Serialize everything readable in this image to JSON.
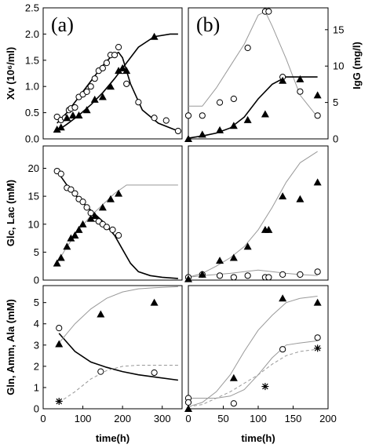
{
  "chart_data": [
    {
      "id": "a-top",
      "type": "scatter",
      "panel_label": "(a)",
      "ylabel": "Xv (10⁶/ml)",
      "xlim": [
        0,
        350
      ],
      "ylim": [
        0,
        2.5
      ],
      "yticks": [
        "0.0",
        "0.5",
        "1.0",
        "1.5",
        "2.0",
        "2.5"
      ],
      "series": [
        {
          "marker": "circle",
          "x": [
            35,
            45,
            55,
            65,
            70,
            80,
            90,
            100,
            110,
            120,
            130,
            140,
            150,
            160,
            170,
            180,
            190,
            200,
            210,
            240,
            280,
            310,
            340
          ],
          "y": [
            0.42,
            0.36,
            0.4,
            0.55,
            0.58,
            0.6,
            0.8,
            0.85,
            0.9,
            1.0,
            1.15,
            1.3,
            1.35,
            1.45,
            1.6,
            1.6,
            1.75,
            1.3,
            1.05,
            0.7,
            0.4,
            0.35,
            0.15
          ]
        },
        {
          "marker": "triangle",
          "x": [
            35,
            45,
            60,
            75,
            90,
            110,
            130,
            150,
            170,
            190,
            200,
            210,
            280
          ],
          "y": [
            0.18,
            0.22,
            0.4,
            0.45,
            0.45,
            0.55,
            0.75,
            0.8,
            1.0,
            1.3,
            1.35,
            1.3,
            1.95
          ]
        },
        {
          "line": "dark",
          "x": [
            35,
            60,
            90,
            120,
            150,
            175,
            190,
            200,
            220,
            250,
            290,
            340
          ],
          "y": [
            0.3,
            0.5,
            0.8,
            1.1,
            1.4,
            1.6,
            1.65,
            1.55,
            1.05,
            0.55,
            0.3,
            0.15
          ]
        },
        {
          "line": "dark",
          "x": [
            35,
            60,
            90,
            120,
            150,
            180,
            210,
            240,
            280,
            320,
            340
          ],
          "y": [
            0.15,
            0.28,
            0.45,
            0.65,
            0.88,
            1.15,
            1.45,
            1.75,
            1.95,
            2.0,
            2.0
          ]
        }
      ]
    },
    {
      "id": "b-top",
      "type": "scatter",
      "panel_label": "(b)",
      "ylabel_right": "IgG (mg/l)",
      "xlim": [
        0,
        200
      ],
      "ylim": [
        0,
        18
      ],
      "yticks_right": [
        "0",
        "5",
        "10",
        "15"
      ],
      "series": [
        {
          "marker": "circle",
          "x": [
            0,
            20,
            45,
            65,
            85,
            110,
            115,
            135,
            160,
            185
          ],
          "y": [
            3.2,
            3.2,
            5.0,
            5.5,
            12.5,
            17.5,
            17.5,
            8.5,
            6.5,
            3.2
          ]
        },
        {
          "marker": "triangle",
          "x": [
            0,
            20,
            45,
            65,
            85,
            110,
            135,
            160,
            185
          ],
          "y": [
            0.0,
            0.6,
            1.2,
            1.8,
            2.6,
            3.4,
            8.0,
            8.2,
            6.0
          ]
        },
        {
          "line": "grey",
          "x": [
            0,
            20,
            40,
            60,
            80,
            100,
            110,
            120,
            140,
            160,
            185
          ],
          "y": [
            4.5,
            4.5,
            7.0,
            10.0,
            13.0,
            17.0,
            17.5,
            15.5,
            11.0,
            6.0,
            3.0
          ]
        },
        {
          "line": "dark",
          "x": [
            0,
            20,
            40,
            60,
            80,
            100,
            120,
            140,
            160,
            185
          ],
          "y": [
            0.1,
            0.4,
            0.8,
            1.5,
            3.0,
            5.5,
            7.5,
            8.5,
            8.5,
            8.5
          ]
        }
      ]
    },
    {
      "id": "a-mid",
      "type": "scatter",
      "ylabel": "Glc, Lac (mM)",
      "xlim": [
        0,
        350
      ],
      "ylim": [
        0,
        24
      ],
      "yticks": [
        "0",
        "5",
        "10",
        "15",
        "20"
      ],
      "series": [
        {
          "marker": "circle",
          "x": [
            35,
            45,
            60,
            70,
            80,
            90,
            100,
            110,
            120,
            130,
            140,
            150,
            160,
            175,
            190
          ],
          "y": [
            19.5,
            19.0,
            16.5,
            16.2,
            15.5,
            14.5,
            14.0,
            13.0,
            12.0,
            11.0,
            10.5,
            10.0,
            9.5,
            9.0,
            8.0
          ]
        },
        {
          "marker": "triangle",
          "x": [
            35,
            45,
            60,
            70,
            80,
            90,
            100,
            120,
            130,
            150,
            170,
            190
          ],
          "y": [
            3.0,
            4.0,
            6.0,
            7.5,
            8.0,
            9.0,
            10.0,
            11.0,
            11.5,
            13.0,
            14.5,
            15.5
          ]
        },
        {
          "line": "dark",
          "x": [
            35,
            60,
            90,
            120,
            150,
            180,
            200,
            220,
            240,
            270,
            300,
            340
          ],
          "y": [
            19.5,
            17.0,
            14.5,
            12.5,
            10.5,
            8.0,
            5.5,
            3.0,
            1.5,
            0.8,
            0.5,
            0.3
          ]
        },
        {
          "line": "grey",
          "x": [
            35,
            60,
            90,
            120,
            150,
            180,
            210,
            240,
            340
          ],
          "y": [
            3.0,
            6.0,
            9.0,
            11.5,
            13.5,
            15.5,
            17.0,
            17.0,
            17.0
          ]
        }
      ]
    },
    {
      "id": "b-mid",
      "type": "scatter",
      "xlim": [
        0,
        200
      ],
      "ylim": [
        0,
        24
      ],
      "series": [
        {
          "marker": "circle",
          "x": [
            0,
            20,
            45,
            65,
            85,
            110,
            115,
            135,
            160,
            185
          ],
          "y": [
            0.5,
            1.0,
            0.8,
            0.5,
            0.8,
            0.5,
            0.5,
            1.0,
            1.0,
            1.5
          ]
        },
        {
          "marker": "triangle",
          "x": [
            0,
            20,
            45,
            65,
            85,
            110,
            115,
            135,
            160,
            185
          ],
          "y": [
            0.2,
            1.0,
            3.5,
            4.0,
            6.0,
            9.0,
            9.0,
            15.0,
            14.5,
            17.5
          ]
        },
        {
          "line": "grey",
          "x": [
            0,
            20,
            40,
            60,
            80,
            100,
            120,
            140,
            160,
            185
          ],
          "y": [
            0.5,
            1.2,
            2.5,
            4.0,
            6.0,
            9.0,
            13.0,
            17.5,
            21.0,
            23.0
          ]
        },
        {
          "line": "grey",
          "x": [
            0,
            20,
            40,
            60,
            80,
            100,
            120,
            140,
            160,
            185
          ],
          "y": [
            0.5,
            0.8,
            1.0,
            1.2,
            1.5,
            1.8,
            1.5,
            1.2,
            1.0,
            0.8
          ]
        }
      ]
    },
    {
      "id": "a-bot",
      "type": "scatter",
      "ylabel": "Gln, Amm, Ala (mM)",
      "xlabel": "time(h)",
      "xlim": [
        0,
        350
      ],
      "ylim": [
        0,
        5.8
      ],
      "yticks": [
        "0",
        "1",
        "2",
        "3",
        "4",
        "5"
      ],
      "xticks": [
        "0",
        "100",
        "200",
        "300"
      ],
      "series": [
        {
          "marker": "circle",
          "x": [
            40,
            145,
            280
          ],
          "y": [
            3.8,
            1.75,
            1.7
          ]
        },
        {
          "marker": "triangle",
          "x": [
            40,
            145,
            280
          ],
          "y": [
            3.05,
            4.45,
            5.0
          ]
        },
        {
          "marker": "star",
          "x": [
            40
          ],
          "y": [
            0.35
          ]
        },
        {
          "line": "dark",
          "x": [
            40,
            80,
            120,
            160,
            200,
            240,
            280,
            340
          ],
          "y": [
            3.55,
            2.7,
            2.2,
            1.95,
            1.75,
            1.6,
            1.5,
            1.35
          ]
        },
        {
          "line": "grey",
          "x": [
            40,
            80,
            120,
            160,
            200,
            240,
            280,
            340
          ],
          "y": [
            3.1,
            4.0,
            4.7,
            5.2,
            5.5,
            5.65,
            5.7,
            5.75
          ]
        },
        {
          "line": "dash",
          "x": [
            40,
            80,
            120,
            160,
            200,
            240,
            340
          ],
          "y": [
            0.3,
            0.8,
            1.4,
            1.8,
            2.0,
            2.05,
            2.05
          ]
        }
      ]
    },
    {
      "id": "b-bot",
      "type": "scatter",
      "xlabel": "time(h)",
      "xlim": [
        0,
        200
      ],
      "ylim": [
        0,
        5.8
      ],
      "xticks": [
        "0",
        "50",
        "100",
        "150",
        "200"
      ],
      "series": [
        {
          "marker": "circle",
          "x": [
            0,
            0,
            65,
            135,
            185
          ],
          "y": [
            0.5,
            0.3,
            0.25,
            2.8,
            3.35
          ]
        },
        {
          "marker": "triangle",
          "x": [
            0,
            65,
            135,
            185
          ],
          "y": [
            0.0,
            1.45,
            5.2,
            5.0
          ]
        },
        {
          "marker": "star",
          "x": [
            110,
            185
          ],
          "y": [
            1.05,
            2.85
          ]
        },
        {
          "line": "grey",
          "x": [
            0,
            20,
            40,
            60,
            80,
            100,
            120,
            140,
            160,
            185
          ],
          "y": [
            0.1,
            0.3,
            0.8,
            1.6,
            2.7,
            3.7,
            4.4,
            5.0,
            5.2,
            5.3
          ]
        },
        {
          "line": "grey",
          "x": [
            0,
            20,
            40,
            60,
            80,
            100,
            120,
            140,
            160,
            185
          ],
          "y": [
            0.5,
            0.5,
            0.5,
            0.6,
            0.9,
            1.6,
            2.4,
            3.0,
            3.1,
            3.2
          ]
        },
        {
          "line": "dash",
          "x": [
            0,
            20,
            40,
            60,
            80,
            100,
            120,
            140,
            160,
            185
          ],
          "y": [
            0.1,
            0.2,
            0.5,
            0.8,
            1.2,
            1.6,
            2.1,
            2.5,
            2.7,
            2.8
          ]
        }
      ]
    }
  ]
}
